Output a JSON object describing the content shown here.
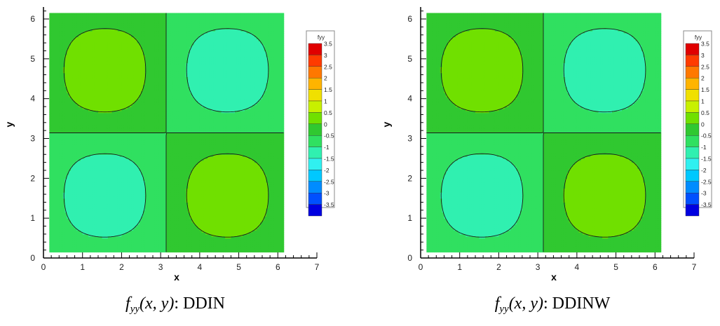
{
  "chart_data": [
    {
      "type": "heatmap",
      "title": "",
      "xlabel": "x",
      "ylabel": "y",
      "xlim": [
        0,
        7
      ],
      "ylim": [
        0,
        6.3
      ],
      "x_major_ticks": [
        0,
        1,
        2,
        3,
        4,
        5,
        6,
        7
      ],
      "y_major_ticks": [
        0,
        1,
        2,
        3,
        4,
        5,
        6
      ],
      "domain": {
        "x": [
          0.15,
          6.15
        ],
        "y": [
          0.15,
          6.15
        ]
      },
      "field": "fyy(x,y) = -sin(x)*sin(y)",
      "levels": [
        -3.5,
        -3,
        -2.5,
        -2,
        -1.5,
        -1,
        -0.5,
        0,
        0.5,
        1,
        1.5,
        2,
        2.5,
        3,
        3.5
      ],
      "legend": {
        "title": "fyy",
        "placement": "right",
        "entries": [
          "3.5",
          "3",
          "2.5",
          "2",
          "1.5",
          "1",
          "0.5",
          "0",
          "-0.5",
          "-1",
          "-1.5",
          "-2",
          "-2.5",
          "-3",
          "-3.5"
        ],
        "colors": [
          "#e00000",
          "#ff3b00",
          "#ff7800",
          "#ffb400",
          "#f0e000",
          "#c8f000",
          "#70e000",
          "#30c830",
          "#30e060",
          "#30f0b0",
          "#30f0f0",
          "#00c8ff",
          "#008cff",
          "#0050ff",
          "#0000e0"
        ]
      },
      "caption": {
        "fn": "f",
        "sub": "yy",
        "args": "(x, y)",
        "method": ": DDIN"
      }
    },
    {
      "type": "heatmap",
      "title": "",
      "xlabel": "x",
      "ylabel": "y",
      "xlim": [
        0,
        7
      ],
      "ylim": [
        0,
        6.3
      ],
      "x_major_ticks": [
        0,
        1,
        2,
        3,
        4,
        5,
        6,
        7
      ],
      "y_major_ticks": [
        0,
        1,
        2,
        3,
        4,
        5,
        6
      ],
      "domain": {
        "x": [
          0.15,
          6.15
        ],
        "y": [
          0.15,
          6.15
        ]
      },
      "field": "fyy(x,y) = -sin(x)*sin(y)",
      "levels": [
        -3.5,
        -3,
        -2.5,
        -2,
        -1.5,
        -1,
        -0.5,
        0,
        0.5,
        1,
        1.5,
        2,
        2.5,
        3,
        3.5
      ],
      "legend": {
        "title": "fyy",
        "placement": "right",
        "entries": [
          "3.5",
          "3",
          "2.5",
          "2",
          "1.5",
          "1",
          "0.5",
          "0",
          "-0.5",
          "-1",
          "-1.5",
          "-2",
          "-2.5",
          "-3",
          "-3.5"
        ],
        "colors": [
          "#e00000",
          "#ff3b00",
          "#ff7800",
          "#ffb400",
          "#f0e000",
          "#c8f000",
          "#70e000",
          "#30c830",
          "#30e060",
          "#30f0b0",
          "#30f0f0",
          "#00c8ff",
          "#008cff",
          "#0050ff",
          "#0000e0"
        ]
      },
      "caption": {
        "fn": "f",
        "sub": "yy",
        "args": "(x, y)",
        "method": ": DDINW"
      }
    }
  ]
}
